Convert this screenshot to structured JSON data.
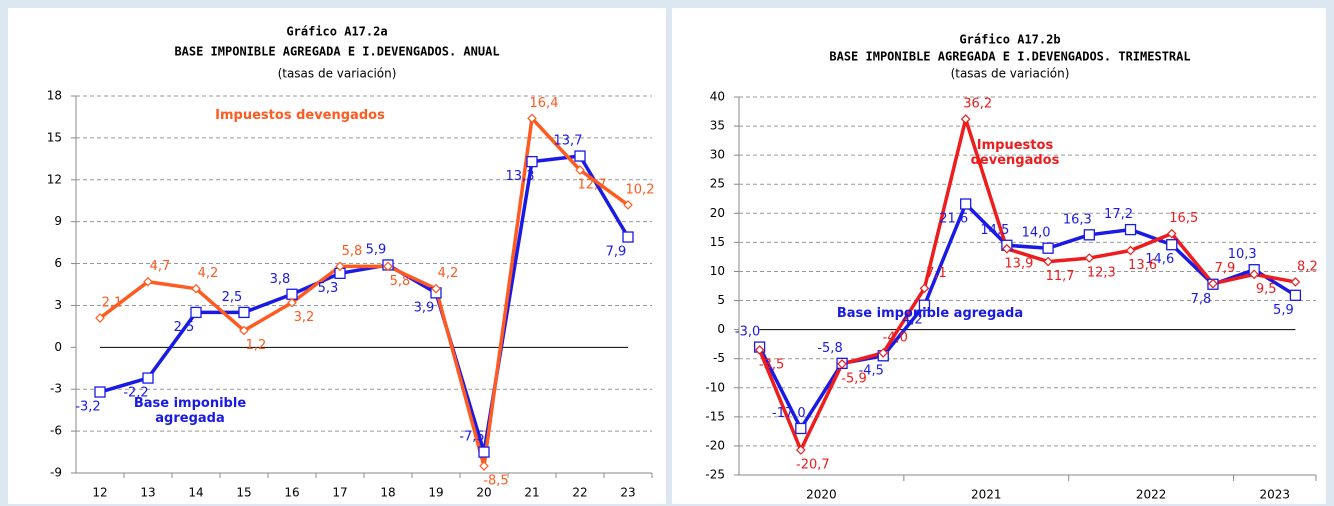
{
  "chart_data": [
    {
      "type": "line",
      "title": "Gráfico A17.2a",
      "subtitle": "BASE IMPONIBLE  AGREGADA  E I.DEVENGADOS.  ANUAL",
      "unit_note": "(tasas de variación)",
      "categories": [
        "12",
        "13",
        "14",
        "15",
        "16",
        "17",
        "18",
        "19",
        "20",
        "21",
        "22",
        "23"
      ],
      "ylim": [
        -9,
        18
      ],
      "yticks": [
        -9,
        -6,
        -3,
        0,
        3,
        6,
        9,
        12,
        15,
        18
      ],
      "grid": true,
      "series": [
        {
          "name": "Base imponible agregada",
          "color": "#1a1ae6",
          "marker": "square",
          "values": [
            -3.2,
            -2.2,
            2.5,
            2.5,
            3.8,
            5.3,
            5.9,
            3.9,
            -7.5,
            13.3,
            13.7,
            7.9
          ],
          "value_labels": [
            "-3,2",
            "-2,2",
            "2,5",
            "2,5",
            "3,8",
            "5,3",
            "5,9",
            "3,9",
            "-7,5",
            "13,3",
            "13,7",
            "7,9"
          ]
        },
        {
          "name": "Impuestos devengados",
          "color": "#ff5a1f",
          "marker": "diamond",
          "values": [
            2.1,
            4.7,
            4.2,
            1.2,
            3.2,
            5.8,
            5.8,
            4.2,
            -8.5,
            16.4,
            12.7,
            10.2
          ],
          "value_labels": [
            "2,1",
            "4,7",
            "4,2",
            "1,2",
            "3,2",
            "5,8",
            "5,8",
            "4,2",
            "-8,5",
            "16,4",
            "12,7",
            "10,2"
          ]
        }
      ]
    },
    {
      "type": "line",
      "title": "Gráfico A17.2b",
      "subtitle": "BASE IMPONIBLE  AGREGADA  E I.DEVENGADOS.  TRIMESTRAL",
      "unit_note": "(tasas de variación)",
      "categories": [
        null,
        null,
        null,
        null,
        null,
        null,
        null,
        null,
        null,
        null,
        null,
        null,
        null,
        null
      ],
      "x_groups": [
        "2020",
        "2021",
        "2022",
        "2023"
      ],
      "ylim": [
        -25,
        40
      ],
      "yticks": [
        -25,
        -20,
        -15,
        -10,
        -5,
        0,
        5,
        10,
        15,
        20,
        25,
        30,
        35,
        40
      ],
      "grid": true,
      "series": [
        {
          "name": "Base imponible agregada",
          "color": "#1a1ae6",
          "marker": "square",
          "values": [
            -3.0,
            -17.0,
            -5.8,
            -4.5,
            4.2,
            21.6,
            14.5,
            14.0,
            16.3,
            17.2,
            14.6,
            7.8,
            10.3,
            5.9
          ],
          "value_labels": [
            "-3,0",
            "-17,0",
            "-5,8",
            "-4,5",
            "4,2",
            "21,6",
            "14,5",
            "14,0",
            "16,3",
            "17,2",
            "14,6",
            "7,8",
            "10,3",
            "5,9"
          ]
        },
        {
          "name": "Impuestos devengados",
          "color": "#ee1c1c",
          "marker": "diamond",
          "values": [
            -3.5,
            -20.7,
            -5.9,
            -4.0,
            7.1,
            36.2,
            13.9,
            11.7,
            12.3,
            13.6,
            16.5,
            7.9,
            9.5,
            8.2
          ],
          "value_labels": [
            "-3,5",
            "-20,7",
            "-5,9",
            "-4,0",
            "7,1",
            "36,2",
            "13,9",
            "11,7",
            "12,3",
            "13,6",
            "16,5",
            "7,9",
            "9,5",
            "8,2"
          ]
        }
      ]
    }
  ]
}
